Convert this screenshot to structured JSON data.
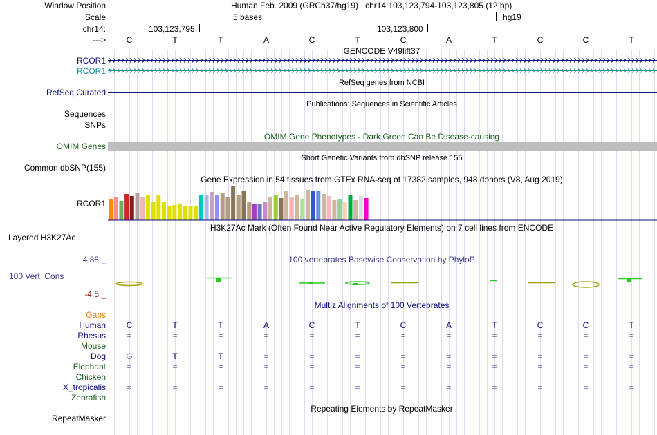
{
  "header": {
    "window_position_label": "Window Position",
    "scale_label": "Scale",
    "chrom_label": "chr14:",
    "arrow_label": "--->",
    "assembly_position": "Human Feb. 2009 (GRCh37/hg19)   chr14:103,123,794-103,123,805 (12 bp)",
    "scale_text": "5 bases",
    "scale_db": "hg19",
    "coord_1": "103,123,795",
    "coord_2": "103,123,800",
    "bases": [
      "C",
      "T",
      "T",
      "A",
      "C",
      "T",
      "C",
      "A",
      "T",
      "C",
      "C",
      "T"
    ]
  },
  "tracks": {
    "gencode": {
      "title": "GENCODE V49lift37",
      "gene1": "RCOR1",
      "gene2": "RCOR1",
      "color1": "#0c0c78",
      "color2": "#1a8ca0"
    },
    "refseq": {
      "label": "RefSeq Curated",
      "title": "RefSeq genes from NCBI",
      "color": "#0c0c78"
    },
    "publications": {
      "title": "Publications: Sequences in Scientific Articles",
      "label1": "Sequences",
      "label2": "SNPs"
    },
    "omim": {
      "title": "OMIM Gene Phenotypes - Dark Green Can Be Disease-causing",
      "label": "OMIM Genes",
      "color": "#1a5e1a"
    },
    "dbsnp": {
      "title": "Short Genetic Variants from dbSNP release 155",
      "label": "Common dbSNP(155)"
    },
    "gtex": {
      "title": "Gene Expression in 54 tissues from GTEx RNA-seq of 17382 samples, 948 donors (V8, Aug 2019)",
      "label": "RCOR1"
    },
    "h3k27ac": {
      "title": "H3K27Ac Mark (Often Found Near Active Regulatory Elements) on 7 cell lines from ENCODE",
      "label": "Layered H3K27Ac"
    },
    "phylop": {
      "title": "100 vertebrates Basewise Conservation by PhyloP",
      "label": "100 Vert. Cons",
      "max": "4.88 _",
      "min": "-4.5 _",
      "color": "#3c3c8c"
    },
    "multiz": {
      "title": "Multiz Alignments of 100 Vertebrates",
      "species": [
        {
          "name": "Gaps",
          "color": "#e08000"
        },
        {
          "name": "Human",
          "color": "#0c0c78"
        },
        {
          "name": "Rhesus",
          "color": "#0c0c78"
        },
        {
          "name": "Mouse",
          "color": "#1a5e1a"
        },
        {
          "name": "Dog",
          "color": "#0c0c78"
        },
        {
          "name": "Elephant",
          "color": "#1a5e1a"
        },
        {
          "name": "Chicken",
          "color": "#1a5e1a"
        },
        {
          "name": "X_tropicalis",
          "color": "#0c0c78"
        },
        {
          "name": "Zebrafish",
          "color": "#1a5e1a"
        }
      ],
      "eq": "=",
      "dog_bases": [
        "G",
        "T",
        "T"
      ]
    },
    "repeatmasker": {
      "title": "Repeating Elements by RepeatMasker",
      "label": "RepeatMasker"
    }
  }
}
